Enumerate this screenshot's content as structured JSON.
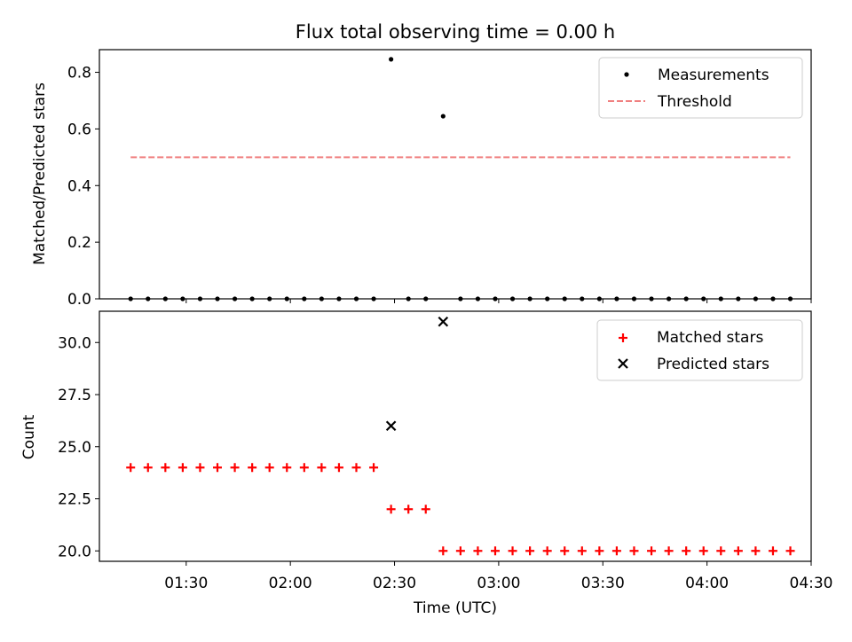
{
  "chart_data": [
    {
      "type": "scatter",
      "title": "Flux total observing time = 0.00 h",
      "ylabel": "Matched/Predicted stars",
      "xlabel": "",
      "ylim": [
        0,
        0.88
      ],
      "xlim": [
        "01:05",
        "04:30"
      ],
      "yticks": [
        0.0,
        0.2,
        0.4,
        0.6,
        0.8
      ],
      "ytick_labels": [
        "0.0",
        "0.2",
        "0.4",
        "0.6",
        "0.8"
      ],
      "legend_position": "top-right",
      "series": [
        {
          "name": "Measurements",
          "color": "#000000",
          "marker": "dot",
          "x": [
            "01:14",
            "01:19",
            "01:24",
            "01:29",
            "01:34",
            "01:39",
            "01:44",
            "01:49",
            "01:54",
            "01:59",
            "02:04",
            "02:09",
            "02:14",
            "02:19",
            "02:24",
            "02:29",
            "02:34",
            "02:39",
            "02:44",
            "02:49",
            "02:54",
            "02:59",
            "03:04",
            "03:09",
            "03:14",
            "03:19",
            "03:24",
            "03:29",
            "03:34",
            "03:39",
            "03:44",
            "03:49",
            "03:54",
            "03:59",
            "04:04",
            "04:09",
            "04:14",
            "04:19",
            "04:24"
          ],
          "y": [
            0,
            0,
            0,
            0,
            0,
            0,
            0,
            0,
            0,
            0,
            0,
            0,
            0,
            0,
            0,
            0.846,
            0,
            0,
            0.645,
            0,
            0,
            0,
            0,
            0,
            0,
            0,
            0,
            0,
            0,
            0,
            0,
            0,
            0,
            0,
            0,
            0,
            0,
            0,
            0
          ]
        },
        {
          "name": "Threshold",
          "color": "#f08080",
          "style": "dashed",
          "x": [
            "01:14",
            "04:24"
          ],
          "y": [
            0.5,
            0.5
          ]
        }
      ]
    },
    {
      "type": "scatter",
      "title": "",
      "ylabel": "Count",
      "xlabel": "Time (UTC)",
      "ylim": [
        19.5,
        31.5
      ],
      "xlim": [
        "01:05",
        "04:30"
      ],
      "yticks": [
        20.0,
        22.5,
        25.0,
        27.5,
        30.0
      ],
      "ytick_labels": [
        "20.0",
        "22.5",
        "25.0",
        "27.5",
        "30.0"
      ],
      "xticks": [
        "01:30",
        "02:00",
        "02:30",
        "03:00",
        "03:30",
        "04:00",
        "04:30"
      ],
      "legend_position": "top-right",
      "series": [
        {
          "name": "Matched stars",
          "color": "#ff0000",
          "marker": "plus",
          "x": [
            "01:14",
            "01:19",
            "01:24",
            "01:29",
            "01:34",
            "01:39",
            "01:44",
            "01:49",
            "01:54",
            "01:59",
            "02:04",
            "02:09",
            "02:14",
            "02:19",
            "02:24",
            "02:29",
            "02:34",
            "02:39",
            "02:44",
            "02:49",
            "02:54",
            "02:59",
            "03:04",
            "03:09",
            "03:14",
            "03:19",
            "03:24",
            "03:29",
            "03:34",
            "03:39",
            "03:44",
            "03:49",
            "03:54",
            "03:59",
            "04:04",
            "04:09",
            "04:14",
            "04:19",
            "04:24"
          ],
          "y": [
            24,
            24,
            24,
            24,
            24,
            24,
            24,
            24,
            24,
            24,
            24,
            24,
            24,
            24,
            24,
            22,
            22,
            22,
            20,
            20,
            20,
            20,
            20,
            20,
            20,
            20,
            20,
            20,
            20,
            20,
            20,
            20,
            20,
            20,
            20,
            20,
            20,
            20,
            20
          ]
        },
        {
          "name": "Predicted stars",
          "color": "#000000",
          "marker": "x",
          "x": [
            "02:29",
            "02:44"
          ],
          "y": [
            26,
            31
          ]
        }
      ]
    }
  ]
}
